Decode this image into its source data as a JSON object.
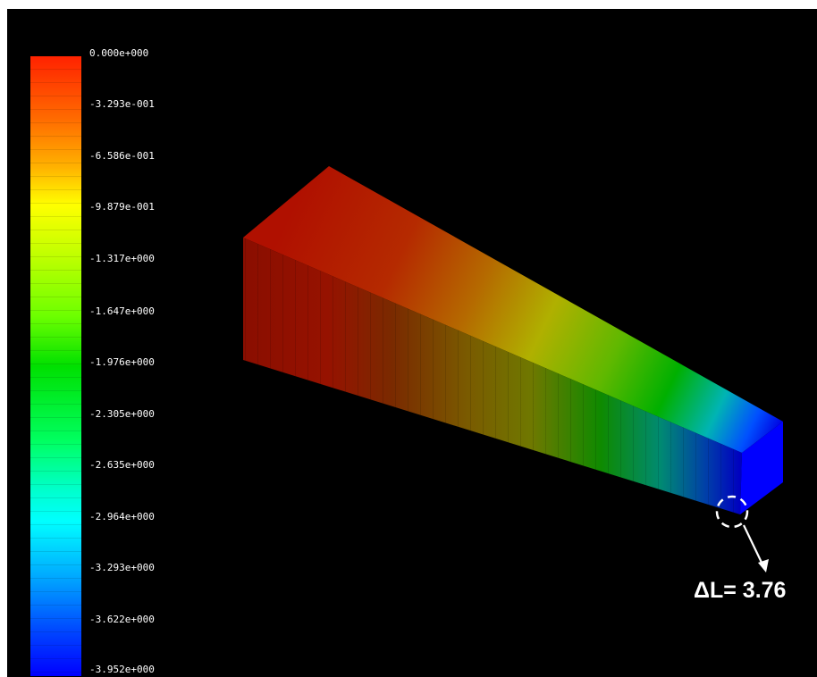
{
  "legend": {
    "labels": [
      "0.000e+000",
      "-3.293e-001",
      "-6.586e-001",
      "-9.879e-001",
      "-1.317e+000",
      "-1.647e+000",
      "-1.976e+000",
      "-2.305e+000",
      "-2.635e+000",
      "-2.964e+000",
      "-3.293e+000",
      "-3.622e+000",
      "-3.952e+000"
    ],
    "max_value": 0.0,
    "min_value": -3.952
  },
  "annotation": {
    "delta_label": "ΔL= 3.76"
  },
  "colors": {
    "background": "#000000",
    "annotation": "#ffffff",
    "fixed_end": "#a01000",
    "free_end": "#0000ff"
  }
}
